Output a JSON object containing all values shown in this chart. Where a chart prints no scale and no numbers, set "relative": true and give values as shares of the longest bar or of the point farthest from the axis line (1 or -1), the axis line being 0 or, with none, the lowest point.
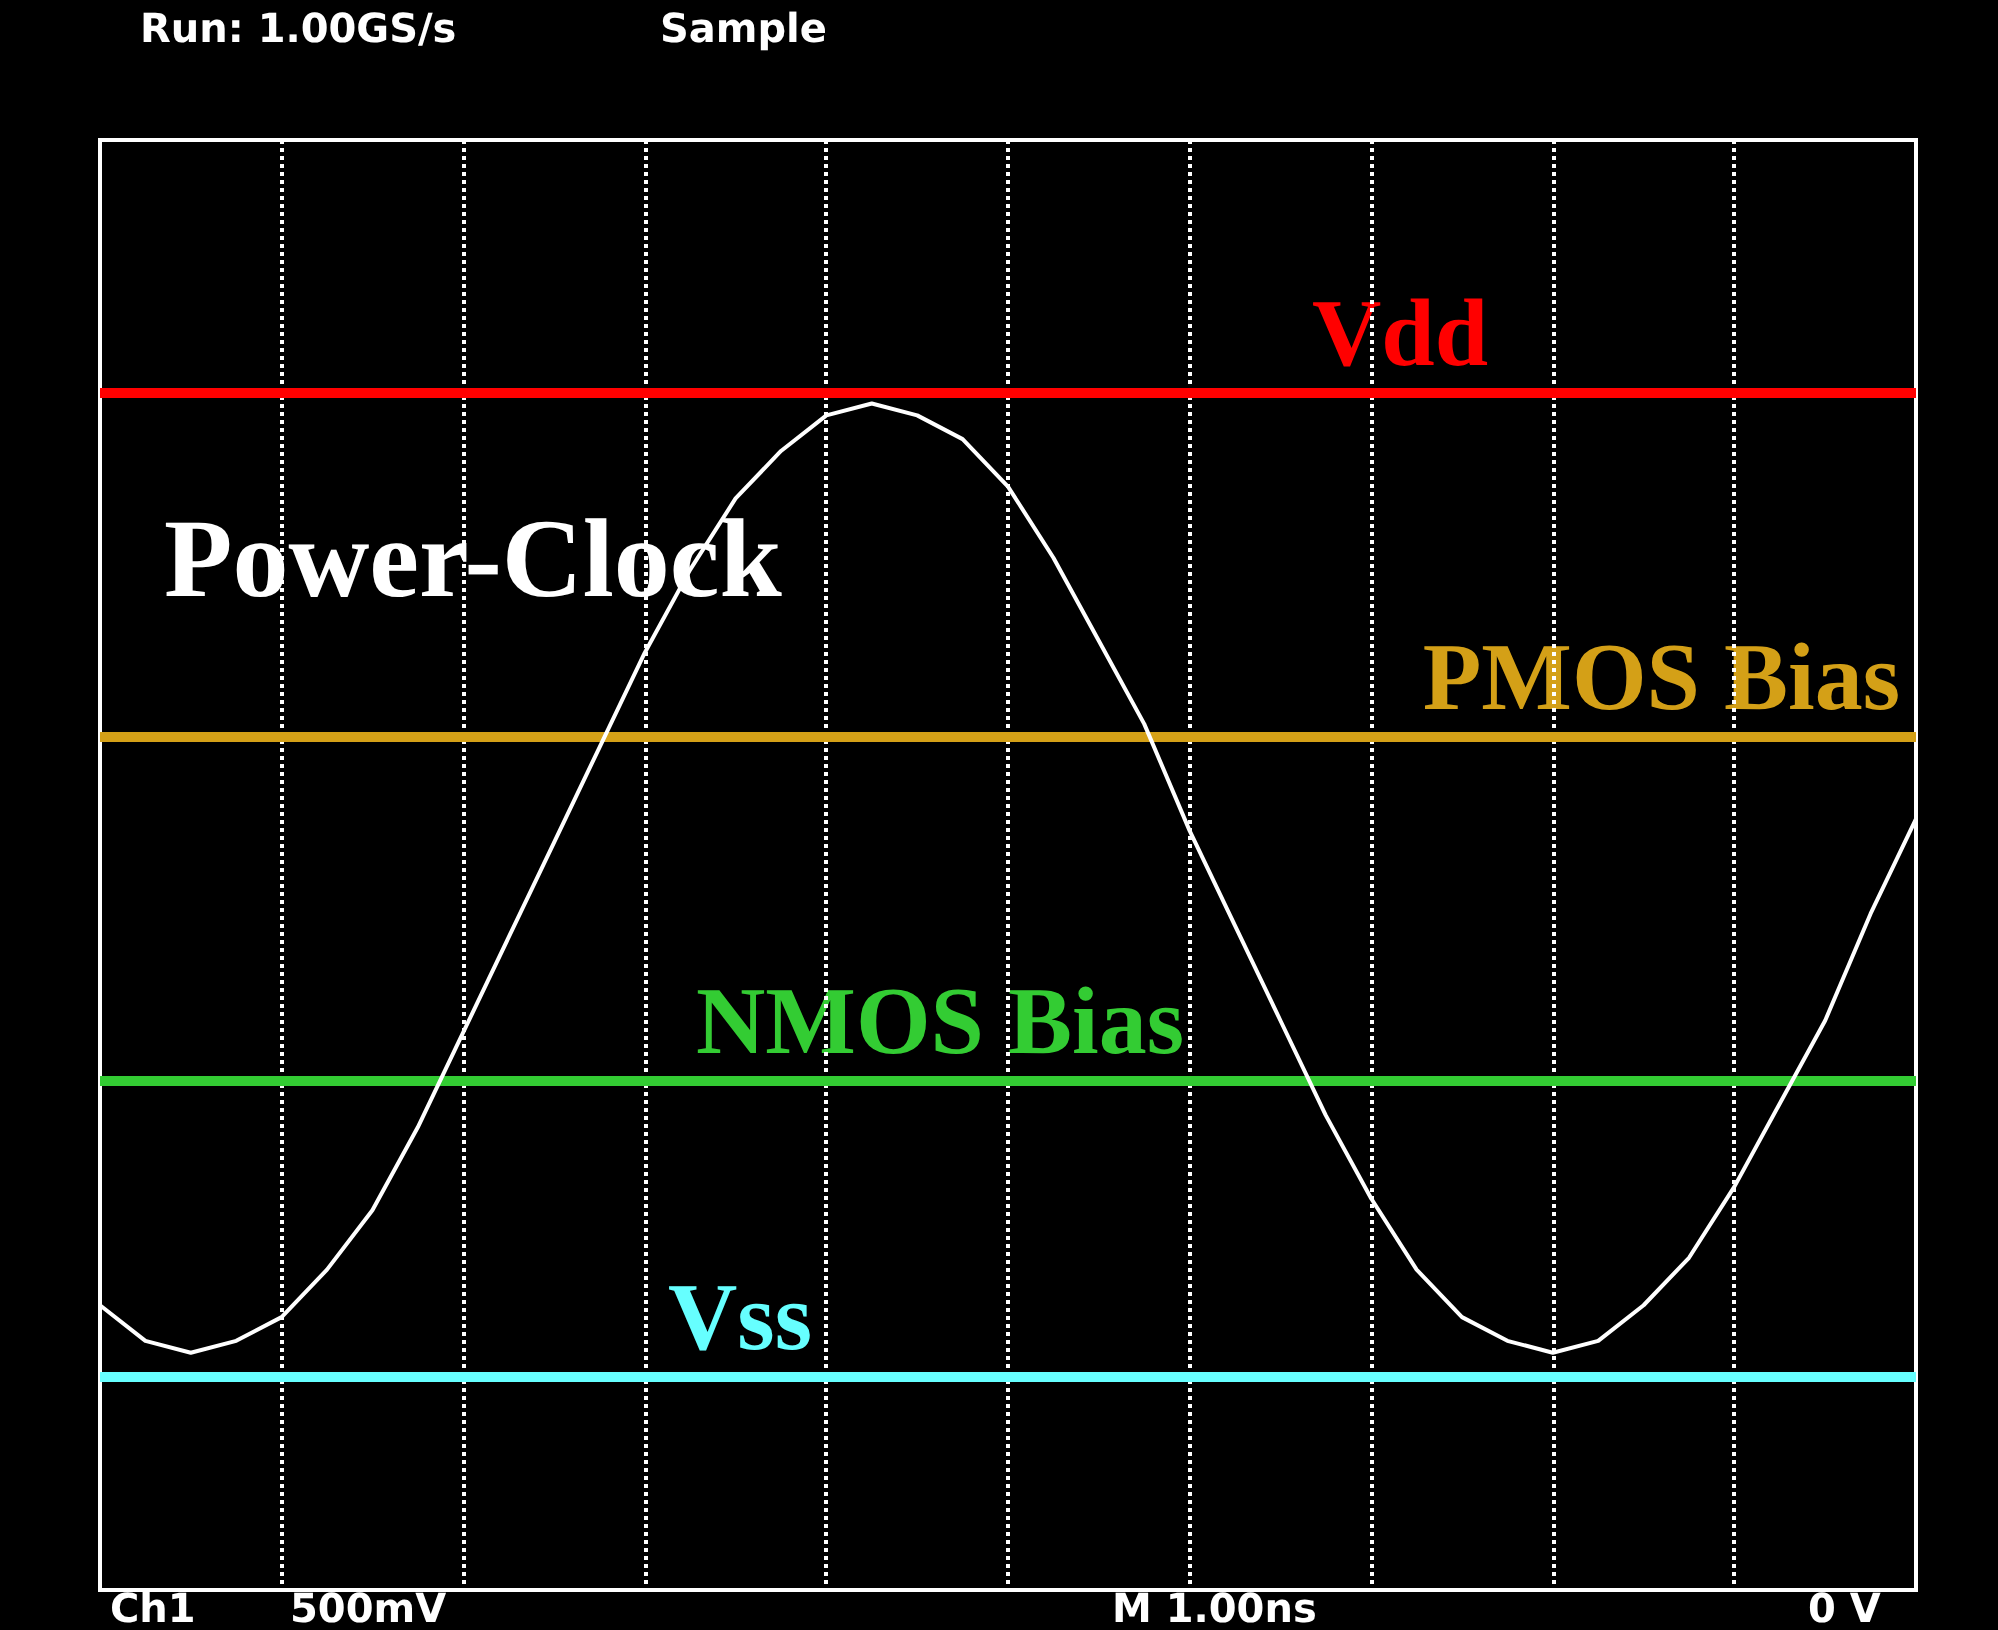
{
  "chart_data": {
    "type": "line",
    "relative": true,
    "grid": "x",
    "legend": false,
    "marker": "none",
    "line_style": "solid",
    "categories": [
      null,
      null,
      null,
      null,
      null,
      null,
      null,
      null,
      null,
      null,
      null,
      null,
      null,
      null,
      null,
      null,
      null,
      null,
      null,
      null,
      null,
      null,
      null,
      null,
      null,
      null,
      null,
      null,
      null,
      null,
      null,
      null,
      null,
      null,
      null,
      null,
      null,
      null,
      null,
      null,
      null
    ],
    "series": [
      {
        "name": "Power-Clock",
        "color": "#ffffff",
        "values": [
          0.24,
          0.21,
          0.2,
          0.21,
          0.23,
          0.27,
          0.32,
          0.39,
          0.47,
          0.55,
          0.63,
          0.71,
          0.79,
          0.86,
          0.92,
          0.96,
          0.99,
          1.0,
          0.99,
          0.97,
          0.93,
          0.87,
          0.8,
          0.73,
          0.64,
          0.56,
          0.48,
          0.4,
          0.33,
          0.27,
          0.23,
          0.21,
          0.2,
          0.21,
          0.24,
          0.28,
          0.34,
          0.41,
          0.48,
          0.57,
          0.65
        ]
      }
    ],
    "ref_lines": [
      {
        "axis": "y",
        "value": 1.01,
        "label": "Vdd",
        "color": "#ff0000",
        "line_style": "solid"
      },
      {
        "axis": "y",
        "value": 0.72,
        "label": "PMOS Bias",
        "color": "#d4a017",
        "line_style": "solid"
      },
      {
        "axis": "y",
        "value": 0.43,
        "label": "NMOS Bias",
        "color": "#33cc33",
        "line_style": "solid"
      },
      {
        "axis": "y",
        "value": 0.18,
        "label": "Vss",
        "color": "#66ffff",
        "line_style": "solid"
      }
    ],
    "annotations": [
      "Run: 1.00GS/s",
      "Sample",
      "Ch1",
      "500mV",
      "M 1.00ns",
      "0 V"
    ]
  }
}
